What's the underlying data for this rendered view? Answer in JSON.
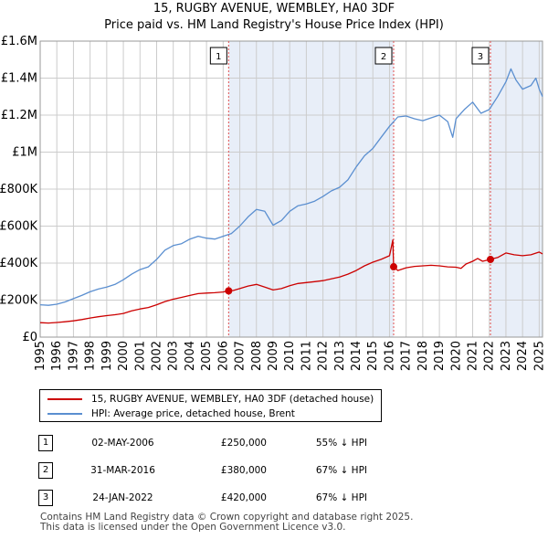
{
  "chart_data": {
    "type": "line",
    "title": "15, RUGBY AVENUE, WEMBLEY, HA0 3DF",
    "subtitle": "Price paid vs. HM Land Registry's House Price Index (HPI)",
    "x_ticks": [
      "1995",
      "1996",
      "1997",
      "1998",
      "1999",
      "2000",
      "2001",
      "2002",
      "2003",
      "2004",
      "2005",
      "2006",
      "2007",
      "2008",
      "2009",
      "2010",
      "2011",
      "2012",
      "2013",
      "2014",
      "2015",
      "2016",
      "2017",
      "2018",
      "2019",
      "2020",
      "2021",
      "2022",
      "2023",
      "2024",
      "2025"
    ],
    "xlim": [
      1995,
      2025.2
    ],
    "y_ticks": [
      {
        "value": 0,
        "label": "£0"
      },
      {
        "value": 200000,
        "label": "£200K"
      },
      {
        "value": 400000,
        "label": "£400K"
      },
      {
        "value": 600000,
        "label": "£600K"
      },
      {
        "value": 800000,
        "label": "£800K"
      },
      {
        "value": 1000000,
        "label": "£1M"
      },
      {
        "value": 1200000,
        "label": "£1.2M"
      },
      {
        "value": 1400000,
        "label": "£1.4M"
      },
      {
        "value": 1600000,
        "label": "£1.6M"
      }
    ],
    "ylim": [
      0,
      1600000
    ],
    "grid": true,
    "highlight_spans": [
      [
        2006.33,
        2016.25
      ],
      [
        2022.07,
        2025.2
      ]
    ],
    "colors": {
      "property": "#cc0000",
      "hpi": "#5b8fd0",
      "span": "#e8eef8",
      "vline": "#e05050",
      "grid": "#cccccc"
    },
    "series": [
      {
        "name": "15, RUGBY AVENUE, WEMBLEY, HA0 3DF (detached house)",
        "key": "property",
        "points": [
          [
            1995,
            78000
          ],
          [
            1995.5,
            76000
          ],
          [
            1996,
            79000
          ],
          [
            1996.5,
            83000
          ],
          [
            1997,
            88000
          ],
          [
            1997.5,
            95000
          ],
          [
            1998,
            103000
          ],
          [
            1998.5,
            110000
          ],
          [
            1999,
            116000
          ],
          [
            1999.5,
            121000
          ],
          [
            2000,
            128000
          ],
          [
            2000.5,
            142000
          ],
          [
            2001,
            152000
          ],
          [
            2001.5,
            160000
          ],
          [
            2002,
            175000
          ],
          [
            2002.5,
            192000
          ],
          [
            2003,
            205000
          ],
          [
            2003.5,
            215000
          ],
          [
            2004,
            225000
          ],
          [
            2004.5,
            235000
          ],
          [
            2005,
            238000
          ],
          [
            2005.5,
            240000
          ],
          [
            2006,
            244000
          ],
          [
            2006.33,
            250000
          ],
          [
            2006.6,
            252000
          ],
          [
            2007,
            262000
          ],
          [
            2007.5,
            276000
          ],
          [
            2008,
            285000
          ],
          [
            2008.5,
            270000
          ],
          [
            2009,
            255000
          ],
          [
            2009.5,
            262000
          ],
          [
            2010,
            278000
          ],
          [
            2010.5,
            290000
          ],
          [
            2011,
            295000
          ],
          [
            2011.5,
            300000
          ],
          [
            2012,
            305000
          ],
          [
            2012.5,
            315000
          ],
          [
            2013,
            325000
          ],
          [
            2013.5,
            340000
          ],
          [
            2014,
            360000
          ],
          [
            2014.5,
            385000
          ],
          [
            2015,
            405000
          ],
          [
            2015.5,
            420000
          ],
          [
            2016,
            440000
          ],
          [
            2016.2,
            525000
          ],
          [
            2016.25,
            380000
          ],
          [
            2016.5,
            360000
          ],
          [
            2017,
            375000
          ],
          [
            2017.5,
            382000
          ],
          [
            2018,
            385000
          ],
          [
            2018.5,
            388000
          ],
          [
            2019,
            385000
          ],
          [
            2019.5,
            380000
          ],
          [
            2020,
            378000
          ],
          [
            2020.3,
            372000
          ],
          [
            2020.6,
            395000
          ],
          [
            2021,
            410000
          ],
          [
            2021.3,
            425000
          ],
          [
            2021.6,
            410000
          ],
          [
            2022.07,
            420000
          ],
          [
            2022.5,
            430000
          ],
          [
            2023,
            455000
          ],
          [
            2023.5,
            445000
          ],
          [
            2024,
            440000
          ],
          [
            2024.5,
            445000
          ],
          [
            2025,
            460000
          ],
          [
            2025.2,
            450000
          ]
        ]
      },
      {
        "name": "HPI: Average price, detached house, Brent",
        "key": "hpi",
        "points": [
          [
            1995,
            175000
          ],
          [
            1995.5,
            172000
          ],
          [
            1996,
            178000
          ],
          [
            1996.5,
            190000
          ],
          [
            1997,
            208000
          ],
          [
            1997.5,
            225000
          ],
          [
            1998,
            245000
          ],
          [
            1998.5,
            260000
          ],
          [
            1999,
            270000
          ],
          [
            1999.5,
            285000
          ],
          [
            2000,
            310000
          ],
          [
            2000.5,
            340000
          ],
          [
            2001,
            365000
          ],
          [
            2001.5,
            380000
          ],
          [
            2002,
            420000
          ],
          [
            2002.5,
            470000
          ],
          [
            2003,
            495000
          ],
          [
            2003.5,
            505000
          ],
          [
            2004,
            530000
          ],
          [
            2004.5,
            545000
          ],
          [
            2005,
            535000
          ],
          [
            2005.5,
            530000
          ],
          [
            2006,
            545000
          ],
          [
            2006.5,
            560000
          ],
          [
            2007,
            600000
          ],
          [
            2007.5,
            650000
          ],
          [
            2008,
            690000
          ],
          [
            2008.5,
            680000
          ],
          [
            2009,
            605000
          ],
          [
            2009.5,
            630000
          ],
          [
            2010,
            680000
          ],
          [
            2010.5,
            710000
          ],
          [
            2011,
            720000
          ],
          [
            2011.5,
            735000
          ],
          [
            2012,
            760000
          ],
          [
            2012.5,
            790000
          ],
          [
            2013,
            810000
          ],
          [
            2013.5,
            850000
          ],
          [
            2014,
            920000
          ],
          [
            2014.5,
            980000
          ],
          [
            2015,
            1020000
          ],
          [
            2015.5,
            1080000
          ],
          [
            2016,
            1140000
          ],
          [
            2016.5,
            1190000
          ],
          [
            2017,
            1195000
          ],
          [
            2017.5,
            1180000
          ],
          [
            2018,
            1170000
          ],
          [
            2018.5,
            1185000
          ],
          [
            2019,
            1200000
          ],
          [
            2019.5,
            1165000
          ],
          [
            2019.8,
            1080000
          ],
          [
            2020,
            1180000
          ],
          [
            2020.5,
            1230000
          ],
          [
            2021,
            1270000
          ],
          [
            2021.5,
            1210000
          ],
          [
            2022,
            1230000
          ],
          [
            2022.5,
            1300000
          ],
          [
            2023,
            1380000
          ],
          [
            2023.3,
            1450000
          ],
          [
            2023.6,
            1390000
          ],
          [
            2024,
            1340000
          ],
          [
            2024.5,
            1360000
          ],
          [
            2024.8,
            1400000
          ],
          [
            2025,
            1340000
          ],
          [
            2025.2,
            1300000
          ]
        ]
      }
    ],
    "sales": [
      {
        "marker": "1",
        "x": 2006.33,
        "price": 250000
      },
      {
        "marker": "2",
        "x": 2016.25,
        "price": 380000
      },
      {
        "marker": "3",
        "x": 2022.07,
        "price": 420000
      }
    ],
    "legend": [
      {
        "label": "15, RUGBY AVENUE, WEMBLEY, HA0 3DF (detached house)",
        "color": "#cc0000"
      },
      {
        "label": "HPI: Average price, detached house, Brent",
        "color": "#5b8fd0"
      }
    ]
  },
  "table": [
    {
      "num": "1",
      "date": "02-MAY-2006",
      "price": "£250,000",
      "hpi": "55% ↓ HPI"
    },
    {
      "num": "2",
      "date": "31-MAR-2016",
      "price": "£380,000",
      "hpi": "67% ↓ HPI"
    },
    {
      "num": "3",
      "date": "24-JAN-2022",
      "price": "£420,000",
      "hpi": "67% ↓ HPI"
    }
  ],
  "footer": {
    "line1": "Contains HM Land Registry data © Crown copyright and database right 2025.",
    "line2": "This data is licensed under the Open Government Licence v3.0."
  }
}
